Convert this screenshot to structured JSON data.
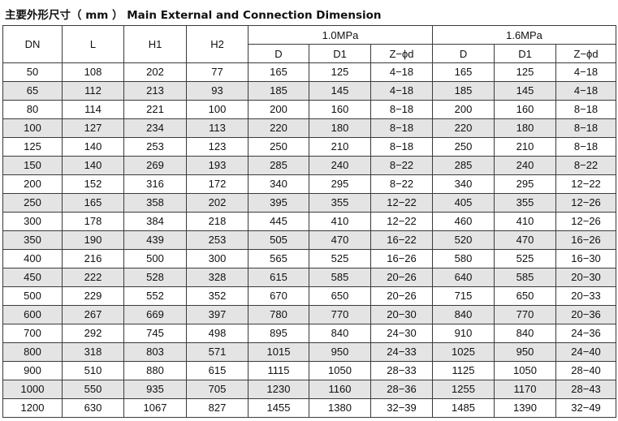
{
  "title": "主要外形尺寸（ mm ） Main External and Connection Dimension",
  "header": {
    "dn": "DN",
    "l": "L",
    "h1": "H1",
    "h2": "H2",
    "group1": "1.0MPa",
    "group2": "1.6MPa",
    "d": "D",
    "d1": "D1",
    "zphid": "Z−ϕd"
  },
  "rows": [
    [
      "50",
      "108",
      "202",
      "77",
      "165",
      "125",
      "4−18",
      "165",
      "125",
      "4−18"
    ],
    [
      "65",
      "112",
      "213",
      "93",
      "185",
      "145",
      "4−18",
      "185",
      "145",
      "4−18"
    ],
    [
      "80",
      "114",
      "221",
      "100",
      "200",
      "160",
      "8−18",
      "200",
      "160",
      "8−18"
    ],
    [
      "100",
      "127",
      "234",
      "113",
      "220",
      "180",
      "8−18",
      "220",
      "180",
      "8−18"
    ],
    [
      "125",
      "140",
      "253",
      "123",
      "250",
      "210",
      "8−18",
      "250",
      "210",
      "8−18"
    ],
    [
      "150",
      "140",
      "269",
      "193",
      "285",
      "240",
      "8−22",
      "285",
      "240",
      "8−22"
    ],
    [
      "200",
      "152",
      "316",
      "172",
      "340",
      "295",
      "8−22",
      "340",
      "295",
      "12−22"
    ],
    [
      "250",
      "165",
      "358",
      "202",
      "395",
      "355",
      "12−22",
      "405",
      "355",
      "12−26"
    ],
    [
      "300",
      "178",
      "384",
      "218",
      "445",
      "410",
      "12−22",
      "460",
      "410",
      "12−26"
    ],
    [
      "350",
      "190",
      "439",
      "253",
      "505",
      "470",
      "16−22",
      "520",
      "470",
      "16−26"
    ],
    [
      "400",
      "216",
      "500",
      "300",
      "565",
      "525",
      "16−26",
      "580",
      "525",
      "16−30"
    ],
    [
      "450",
      "222",
      "528",
      "328",
      "615",
      "585",
      "20−26",
      "640",
      "585",
      "20−30"
    ],
    [
      "500",
      "229",
      "552",
      "352",
      "670",
      "650",
      "20−26",
      "715",
      "650",
      "20−33"
    ],
    [
      "600",
      "267",
      "669",
      "397",
      "780",
      "770",
      "20−30",
      "840",
      "770",
      "20−36"
    ],
    [
      "700",
      "292",
      "745",
      "498",
      "895",
      "840",
      "24−30",
      "910",
      "840",
      "24−36"
    ],
    [
      "800",
      "318",
      "803",
      "571",
      "1015",
      "950",
      "24−33",
      "1025",
      "950",
      "24−40"
    ],
    [
      "900",
      "510",
      "880",
      "615",
      "1115",
      "1050",
      "28−33",
      "1125",
      "1050",
      "28−40"
    ],
    [
      "1000",
      "550",
      "935",
      "705",
      "1230",
      "1160",
      "28−36",
      "1255",
      "1170",
      "28−43"
    ],
    [
      "1200",
      "630",
      "1067",
      "827",
      "1455",
      "1380",
      "32−39",
      "1485",
      "1390",
      "32−49"
    ]
  ]
}
